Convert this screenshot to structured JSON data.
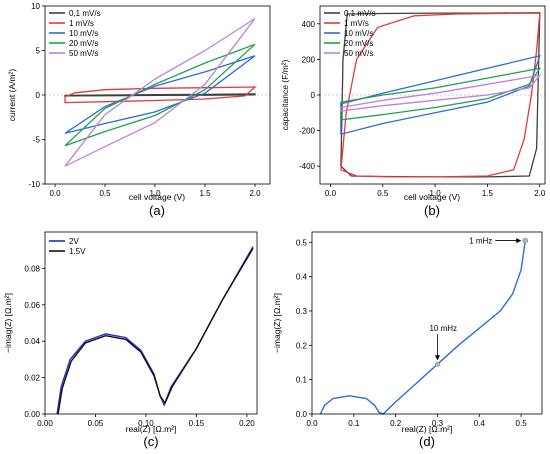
{
  "chart_data": [
    {
      "panel": "a",
      "type": "line",
      "panel_label": "(a)",
      "xlabel": "cell voltage (V)",
      "ylabel": "current (A/m²)",
      "xlim": [
        -0.1,
        2.15
      ],
      "ylim": [
        -10,
        10
      ],
      "xticks": [
        "0.0",
        "0.5",
        "1.0",
        "1.5",
        "2.0"
      ],
      "xtick_values": [
        0,
        0.5,
        1,
        1.5,
        2
      ],
      "yticks": [
        "-10",
        "-5",
        "0",
        "5",
        "10"
      ],
      "ytick_values": [
        -10,
        -5,
        0,
        5,
        10
      ],
      "legend_position": "top-left",
      "series": [
        {
          "name": "0,1 mV/s",
          "color": "#404040",
          "upper": [
            [
              0.1,
              -0.05
            ],
            [
              0.5,
              0.0
            ],
            [
              1.0,
              0.03
            ],
            [
              1.5,
              0.07
            ],
            [
              2.0,
              0.12
            ]
          ],
          "lower": [
            [
              0.1,
              -0.1
            ],
            [
              0.5,
              -0.08
            ],
            [
              1.0,
              -0.05
            ],
            [
              1.5,
              -0.02
            ],
            [
              2.0,
              0.02
            ]
          ]
        },
        {
          "name": "1 mV/s",
          "color": "#e8383d",
          "upper": [
            [
              0.1,
              -0.2
            ],
            [
              0.2,
              0.25
            ],
            [
              0.5,
              0.6
            ],
            [
              1.0,
              0.75
            ],
            [
              1.5,
              0.82
            ],
            [
              2.0,
              0.9
            ]
          ],
          "lower": [
            [
              0.1,
              -0.85
            ],
            [
              0.5,
              -0.75
            ],
            [
              1.0,
              -0.62
            ],
            [
              1.5,
              -0.45
            ],
            [
              1.9,
              -0.1
            ],
            [
              2.0,
              0.9
            ]
          ]
        },
        {
          "name": "10 mV/s",
          "color": "#2a6fd3",
          "upper": [
            [
              0.1,
              -4.3
            ],
            [
              0.5,
              -1.3
            ],
            [
              1.0,
              1.0
            ],
            [
              1.5,
              2.6
            ],
            [
              2.0,
              4.4
            ]
          ],
          "lower": [
            [
              0.1,
              -4.3
            ],
            [
              0.5,
              -3.2
            ],
            [
              1.0,
              -1.9
            ],
            [
              1.5,
              0.2
            ],
            [
              2.0,
              4.4
            ]
          ]
        },
        {
          "name": "20 mV/s",
          "color": "#20a050",
          "upper": [
            [
              0.1,
              -5.7
            ],
            [
              0.5,
              -1.5
            ],
            [
              1.0,
              1.2
            ],
            [
              1.5,
              3.6
            ],
            [
              2.0,
              5.7
            ]
          ],
          "lower": [
            [
              0.1,
              -5.7
            ],
            [
              0.5,
              -4.1
            ],
            [
              1.0,
              -2.3
            ],
            [
              1.5,
              0.6
            ],
            [
              2.0,
              5.7
            ]
          ]
        },
        {
          "name": "50 mV/s",
          "color": "#c080d8",
          "upper": [
            [
              0.1,
              -8.0
            ],
            [
              0.5,
              -2.2
            ],
            [
              1.0,
              1.8
            ],
            [
              1.5,
              5.0
            ],
            [
              2.0,
              8.6
            ]
          ],
          "lower": [
            [
              0.1,
              -8.0
            ],
            [
              0.5,
              -5.8
            ],
            [
              1.0,
              -3.1
            ],
            [
              1.5,
              1.2
            ],
            [
              2.0,
              8.6
            ]
          ]
        }
      ]
    },
    {
      "panel": "b",
      "type": "line",
      "panel_label": "(b)",
      "xlabel": "cell voltage (V)",
      "ylabel": "capacitance (F/m²)",
      "xlim": [
        -0.1,
        2.05
      ],
      "ylim": [
        -500,
        500
      ],
      "xticks": [
        "0.0",
        "0.5",
        "1.0",
        "1.5",
        "2.0"
      ],
      "xtick_values": [
        0,
        0.5,
        1,
        1.5,
        2
      ],
      "yticks": [
        "-400",
        "-200",
        "0",
        "200",
        "400"
      ],
      "ytick_values": [
        -400,
        -200,
        0,
        200,
        400
      ],
      "legend_position": "top-left",
      "series": [
        {
          "name": "0,1 mV/s",
          "color": "#404040",
          "upper": [
            [
              0.1,
              -400
            ],
            [
              0.12,
              200
            ],
            [
              0.16,
              455
            ],
            [
              0.5,
              458
            ],
            [
              1.0,
              460
            ],
            [
              1.5,
              460
            ],
            [
              1.95,
              462
            ],
            [
              2.0,
              462
            ]
          ],
          "lower": [
            [
              0.1,
              -400
            ],
            [
              0.2,
              -455
            ],
            [
              0.5,
              -458
            ],
            [
              1.0,
              -460
            ],
            [
              1.5,
              -460
            ],
            [
              1.9,
              -455
            ],
            [
              1.97,
              -300
            ],
            [
              2.0,
              462
            ]
          ]
        },
        {
          "name": "1 mV/s",
          "color": "#e8383d",
          "upper": [
            [
              0.1,
              -420
            ],
            [
              0.15,
              -100
            ],
            [
              0.25,
              200
            ],
            [
              0.45,
              380
            ],
            [
              0.8,
              445
            ],
            [
              1.2,
              455
            ],
            [
              1.6,
              458
            ],
            [
              2.0,
              460
            ]
          ],
          "lower": [
            [
              0.1,
              -420
            ],
            [
              0.25,
              -455
            ],
            [
              0.6,
              -460
            ],
            [
              1.0,
              -460
            ],
            [
              1.5,
              -455
            ],
            [
              1.75,
              -420
            ],
            [
              1.85,
              -250
            ],
            [
              1.92,
              0
            ],
            [
              1.97,
              250
            ],
            [
              2.0,
              460
            ]
          ]
        },
        {
          "name": "10 mV/s",
          "color": "#2a6fd3",
          "upper": [
            [
              0.1,
              -50
            ],
            [
              0.5,
              10
            ],
            [
              1.0,
              80
            ],
            [
              1.5,
              150
            ],
            [
              2.0,
              220
            ]
          ],
          "lower": [
            [
              0.1,
              -220
            ],
            [
              0.5,
              -160
            ],
            [
              1.0,
              -100
            ],
            [
              1.5,
              -40
            ],
            [
              1.9,
              50
            ],
            [
              2.0,
              220
            ]
          ]
        },
        {
          "name": "20 mV/s",
          "color": "#20a050",
          "upper": [
            [
              0.1,
              -40
            ],
            [
              0.5,
              0
            ],
            [
              1.0,
              40
            ],
            [
              1.5,
              95
            ],
            [
              2.0,
              150
            ]
          ],
          "lower": [
            [
              0.1,
              -140
            ],
            [
              0.5,
              -110
            ],
            [
              1.0,
              -70
            ],
            [
              1.5,
              -20
            ],
            [
              1.9,
              60
            ],
            [
              2.0,
              150
            ]
          ]
        },
        {
          "name": "50 mV/s",
          "color": "#c080d8",
          "upper": [
            [
              0.1,
              -70
            ],
            [
              0.5,
              -30
            ],
            [
              1.0,
              10
            ],
            [
              1.5,
              60
            ],
            [
              2.0,
              110
            ]
          ],
          "lower": [
            [
              0.1,
              -90
            ],
            [
              0.5,
              -60
            ],
            [
              1.0,
              -30
            ],
            [
              1.5,
              0
            ],
            [
              1.9,
              40
            ],
            [
              2.0,
              110
            ]
          ]
        }
      ]
    },
    {
      "panel": "c",
      "type": "line",
      "panel_label": "(c)",
      "xlabel": "real(Z) [Ω.m²]",
      "ylabel": "−imag(Z) [Ω.m²]",
      "xlim": [
        0,
        0.21
      ],
      "ylim": [
        0,
        0.1
      ],
      "xticks": [
        "0.00",
        "0.05",
        "0.10",
        "0.15",
        "0.20"
      ],
      "xtick_values": [
        0,
        0.05,
        0.1,
        0.15,
        0.2
      ],
      "yticks": [
        "0.00",
        "0.02",
        "0.04",
        "0.06",
        "0.08"
      ],
      "ytick_values": [
        0,
        0.02,
        0.04,
        0.06,
        0.08
      ],
      "legend_position": "top-left",
      "series": [
        {
          "name": "2V",
          "color": "#1f2fd0",
          "points": [
            [
              0.012,
              0.0
            ],
            [
              0.016,
              0.015
            ],
            [
              0.025,
              0.03
            ],
            [
              0.04,
              0.04
            ],
            [
              0.06,
              0.044
            ],
            [
              0.08,
              0.042
            ],
            [
              0.095,
              0.035
            ],
            [
              0.108,
              0.022
            ],
            [
              0.114,
              0.01
            ],
            [
              0.118,
              0.005
            ],
            [
              0.125,
              0.015
            ],
            [
              0.15,
              0.036
            ],
            [
              0.175,
              0.062
            ],
            [
              0.206,
              0.092
            ]
          ]
        },
        {
          "name": "1.5V",
          "color": "#101010",
          "points": [
            [
              0.013,
              0.0
            ],
            [
              0.017,
              0.014
            ],
            [
              0.026,
              0.029
            ],
            [
              0.04,
              0.039
            ],
            [
              0.06,
              0.043
            ],
            [
              0.08,
              0.041
            ],
            [
              0.095,
              0.034
            ],
            [
              0.108,
              0.021
            ],
            [
              0.114,
              0.01
            ],
            [
              0.119,
              0.006
            ],
            [
              0.126,
              0.015
            ],
            [
              0.15,
              0.036
            ],
            [
              0.175,
              0.062
            ],
            [
              0.206,
              0.091
            ]
          ]
        }
      ]
    },
    {
      "panel": "d",
      "type": "line",
      "panel_label": "(d)",
      "xlabel": "real(Z) [Ω.m²]",
      "ylabel": "−imag(Z) [Ω.m²]",
      "xlim": [
        0,
        0.55
      ],
      "ylim": [
        0,
        0.53
      ],
      "xticks": [
        "0.0",
        "0.1",
        "0.2",
        "0.3",
        "0.4",
        "0.5"
      ],
      "xtick_values": [
        0,
        0.1,
        0.2,
        0.3,
        0.4,
        0.5
      ],
      "yticks": [
        "0.0",
        "0.1",
        "0.2",
        "0.3",
        "0.4",
        "0.5"
      ],
      "ytick_values": [
        0,
        0.1,
        0.2,
        0.3,
        0.4,
        0.5
      ],
      "series": [
        {
          "name": "",
          "color": "#2a6fd3",
          "points": [
            [
              0.02,
              0.0
            ],
            [
              0.03,
              0.025
            ],
            [
              0.05,
              0.045
            ],
            [
              0.09,
              0.053
            ],
            [
              0.13,
              0.045
            ],
            [
              0.15,
              0.025
            ],
            [
              0.16,
              0.005
            ],
            [
              0.17,
              0.0
            ],
            [
              0.2,
              0.035
            ],
            [
              0.25,
              0.09
            ],
            [
              0.3,
              0.145
            ],
            [
              0.35,
              0.2
            ],
            [
              0.4,
              0.25
            ],
            [
              0.45,
              0.3
            ],
            [
              0.48,
              0.35
            ],
            [
              0.5,
              0.42
            ],
            [
              0.51,
              0.505
            ]
          ]
        }
      ],
      "annotations": [
        {
          "text": "1 mHz",
          "x": 0.51,
          "y": 0.505
        },
        {
          "text": "10 mHz",
          "x": 0.3,
          "y": 0.145
        }
      ]
    }
  ]
}
